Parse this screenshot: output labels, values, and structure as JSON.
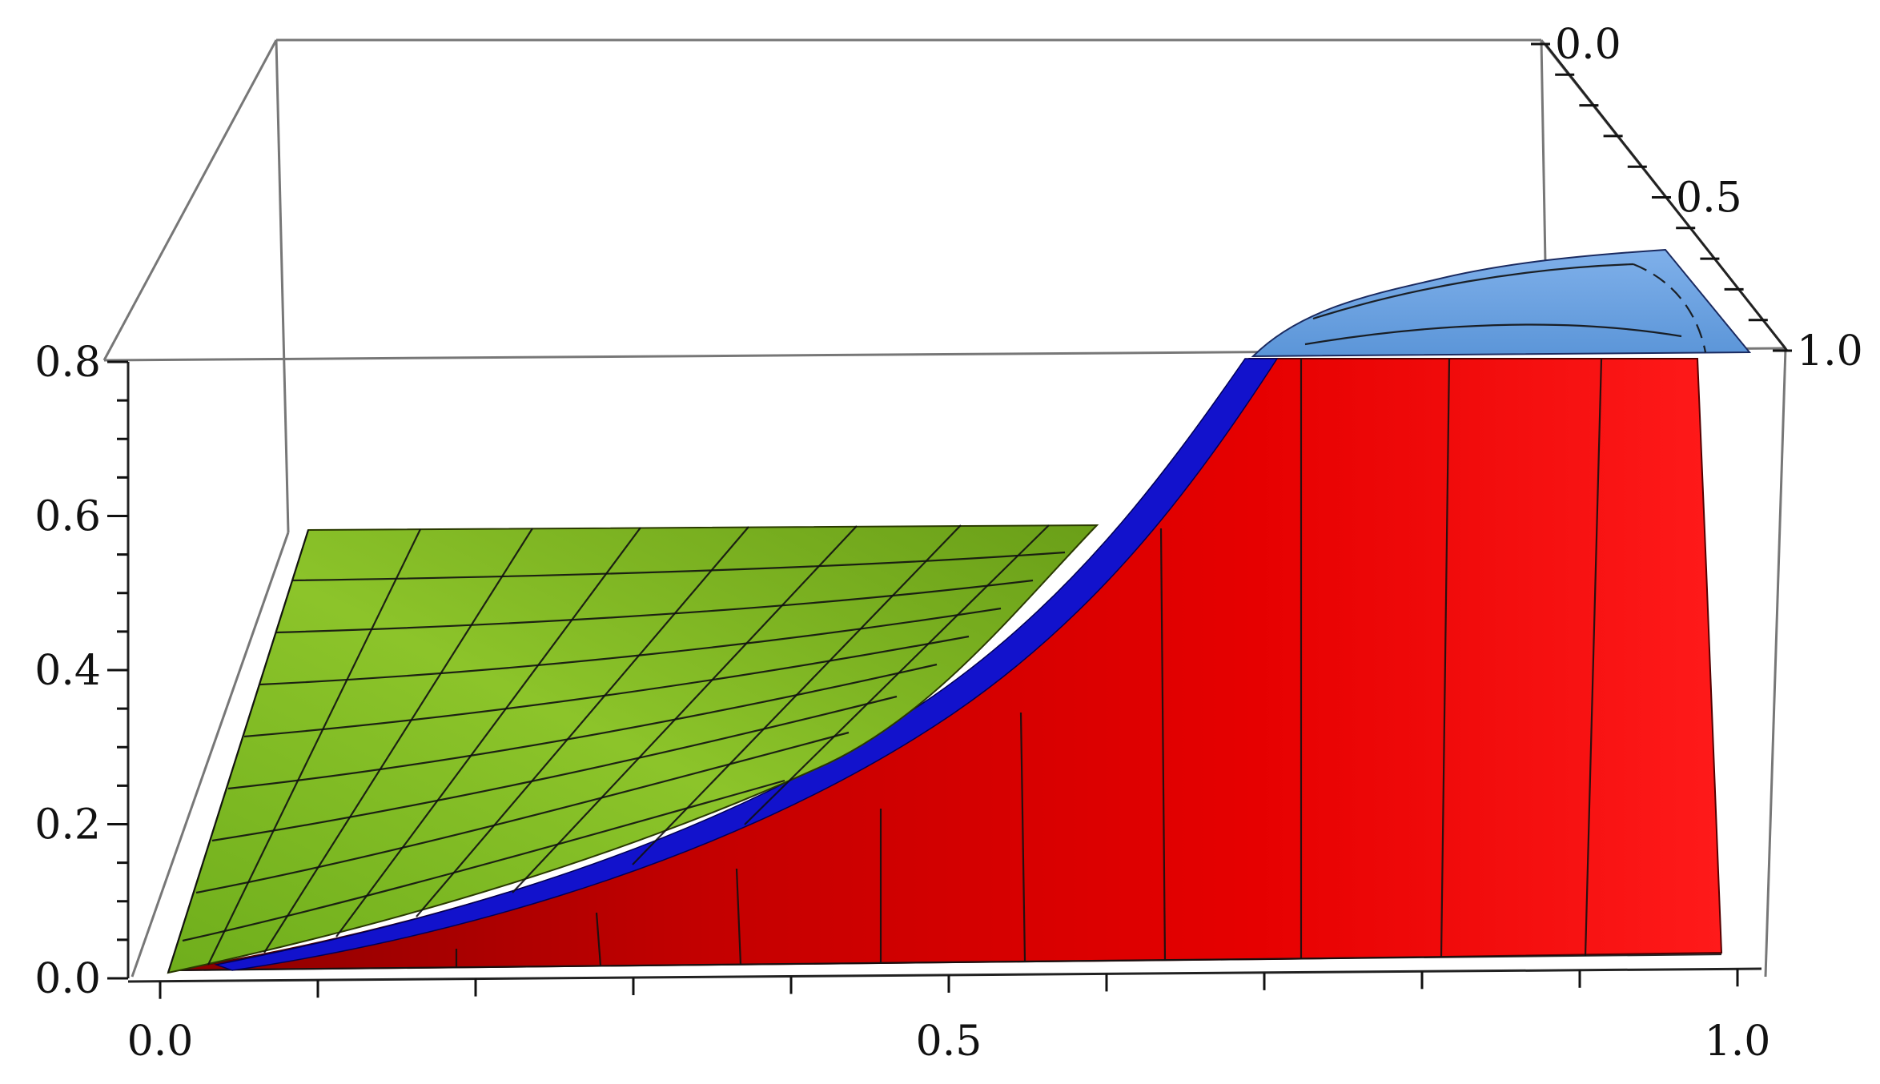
{
  "chart_data": {
    "type": "surface3d",
    "title": "",
    "xlabel": "",
    "ylabel": "",
    "zlabel": "",
    "grid": false,
    "legend": "none",
    "axes": {
      "x": {
        "range": [
          0.0,
          1.0
        ],
        "tick_labels": [
          "0.0",
          "0.5",
          "1.0"
        ],
        "ticks": [
          0.0,
          0.5,
          1.0
        ]
      },
      "y": {
        "range": [
          0.0,
          1.0
        ],
        "tick_labels": [
          "0.0",
          "0.5",
          "1.0"
        ],
        "ticks": [
          0.0,
          0.5,
          1.0
        ]
      },
      "z": {
        "range": [
          0.0,
          0.8
        ],
        "tick_labels": [
          "0.0",
          "0.2",
          "0.4",
          "0.6",
          "0.8"
        ],
        "ticks": [
          0.0,
          0.2,
          0.4,
          0.6,
          0.8
        ]
      }
    },
    "series": [
      {
        "color": "#7fb820",
        "shape": "sloped sheet rising from 0 at x=0,y=0 to about 0.6 along the back edge"
      },
      {
        "color": "#dd0000",
        "shape": "curved wall rising from 0 near x=0 to about 0.8 at x≈0.7, flat near 0.8 up to x≈0.97"
      },
      {
        "color": "#1010cc",
        "shape": "thin band along the top rim of the red surface"
      },
      {
        "color": "#6aa0e0",
        "shape": "cap above z=0.8 near x 0.75–1.0, y 0.5–1.0"
      }
    ]
  }
}
